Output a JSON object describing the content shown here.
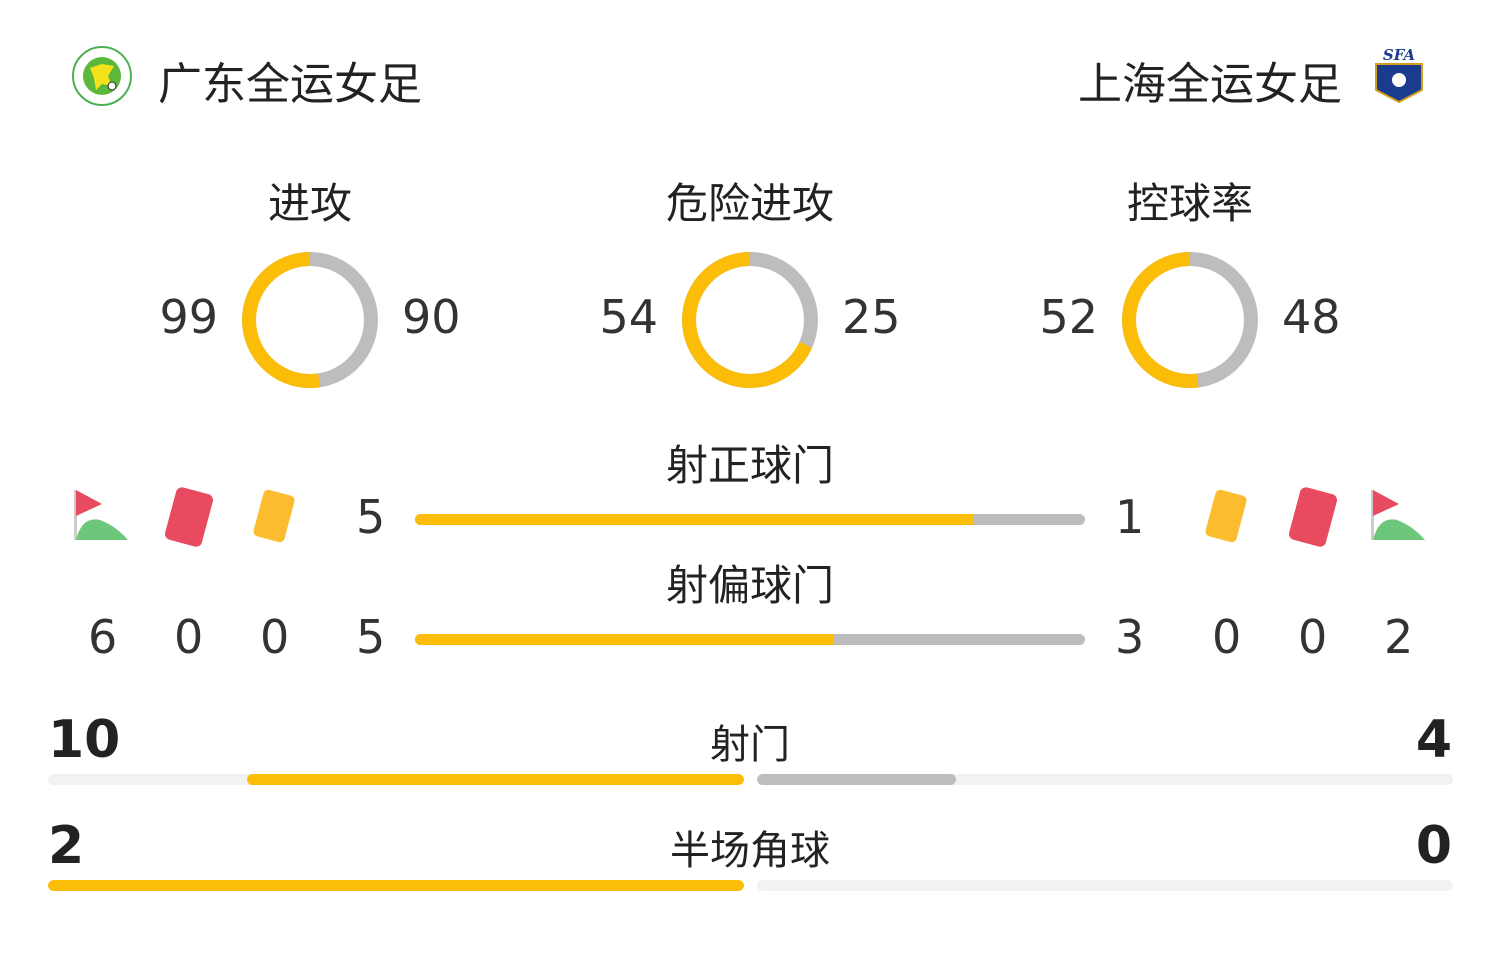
{
  "home": {
    "name": "广东全运女足",
    "logo": "guangdong-logo"
  },
  "away": {
    "name": "上海全运女足",
    "logo": "SFA"
  },
  "colors": {
    "home": "#fbbd08",
    "away": "#bdbdbd",
    "track": "#f2f2f2"
  },
  "donuts": [
    {
      "label": "进攻",
      "home": 99,
      "away": 90
    },
    {
      "label": "危险进攻",
      "home": 54,
      "away": 25
    },
    {
      "label": "控球率",
      "home": 52,
      "away": 48
    }
  ],
  "bars": [
    {
      "label": "射正球门",
      "home": 5,
      "away": 1
    },
    {
      "label": "射偏球门",
      "home": 5,
      "away": 3
    }
  ],
  "events": {
    "home": {
      "corners": 6,
      "red_cards": 0,
      "yellow_cards": 0
    },
    "away": {
      "corners": 2,
      "red_cards": 0,
      "yellow_cards": 0
    }
  },
  "wide_bars": [
    {
      "label": "射门",
      "home": 10,
      "away": 4
    },
    {
      "label": "半场角球",
      "home": 2,
      "away": 0
    }
  ]
}
